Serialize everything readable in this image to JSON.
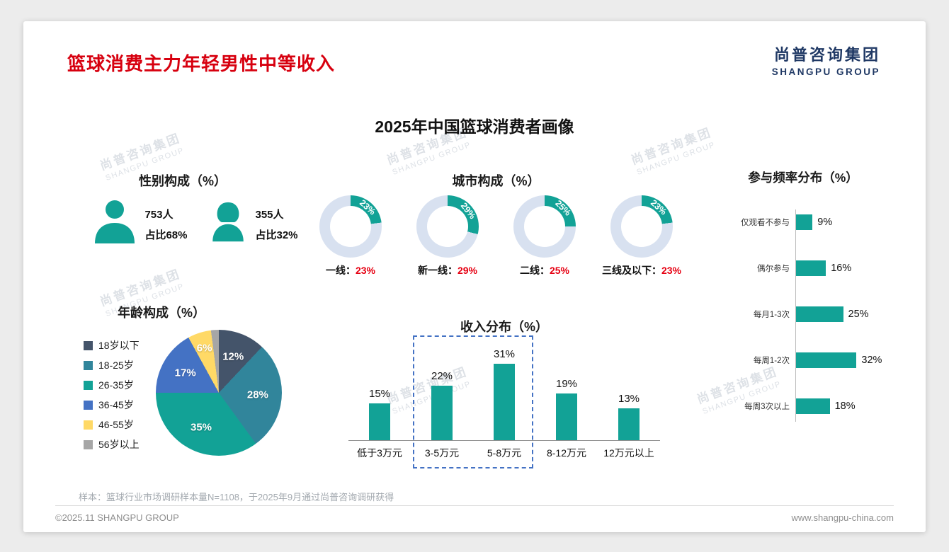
{
  "page": {
    "title": "篮球消费主力年轻男性中等收入",
    "logo_cn": "尚普咨询集团",
    "logo_en": "SHANGPU GROUP",
    "main_title": "2025年中国篮球消费者画像",
    "footnote": "样本：篮球行业市场调研样本量N=1108，于2025年9月通过尚普咨询调研获得",
    "footer_left": "©2025.11 SHANGPU GROUP",
    "footer_right": "www.shangpu-china.com",
    "watermark_line1": "尚普咨询集团",
    "watermark_line2": "SHANGPU GROUP"
  },
  "colors": {
    "teal": "#12A296",
    "ring": "#D8E1F0",
    "red": "#E60012",
    "title_red": "#D7000F",
    "navy": "#1F3864"
  },
  "chart_data": [
    {
      "id": "gender",
      "type": "icon-stats",
      "title": "性别构成（%）",
      "items": [
        {
          "icon": "male",
          "count": "753人",
          "share": "占比68%"
        },
        {
          "icon": "female",
          "count": "355人",
          "share": "占比32%"
        }
      ]
    },
    {
      "id": "city",
      "type": "donut",
      "title": "城市构成（%）",
      "unit": "%",
      "items": [
        {
          "name": "一线",
          "value": 23
        },
        {
          "name": "新一线",
          "value": 29
        },
        {
          "name": "二线",
          "value": 25
        },
        {
          "name": "三线及以下",
          "value": 23
        }
      ]
    },
    {
      "id": "age",
      "type": "pie",
      "title": "年龄构成（%）",
      "categories": [
        "18岁以下",
        "18-25岁",
        "26-35岁",
        "36-45岁",
        "46-55岁",
        "56岁以上"
      ],
      "values": [
        12,
        28,
        35,
        17,
        6,
        2
      ],
      "colors": [
        "#44546A",
        "#31859B",
        "#12A296",
        "#4472C4",
        "#FFD966",
        "#A6A6A6"
      ],
      "legend_position": "left"
    },
    {
      "id": "income",
      "type": "bar",
      "title": "收入分布（%）",
      "categories": [
        "低于3万元",
        "3-5万元",
        "5-8万元",
        "8-12万元",
        "12万元以上"
      ],
      "values": [
        15,
        22,
        31,
        19,
        13
      ],
      "highlight": {
        "from": 1,
        "to": 2,
        "style": "dashed-box"
      }
    },
    {
      "id": "frequency",
      "type": "bar-horizontal",
      "title": "参与频率分布（%）",
      "categories": [
        "仅观看不参与",
        "偶尔参与",
        "每月1-3次",
        "每周1-2次",
        "每周3次以上"
      ],
      "values": [
        9,
        16,
        25,
        32,
        18
      ]
    }
  ]
}
